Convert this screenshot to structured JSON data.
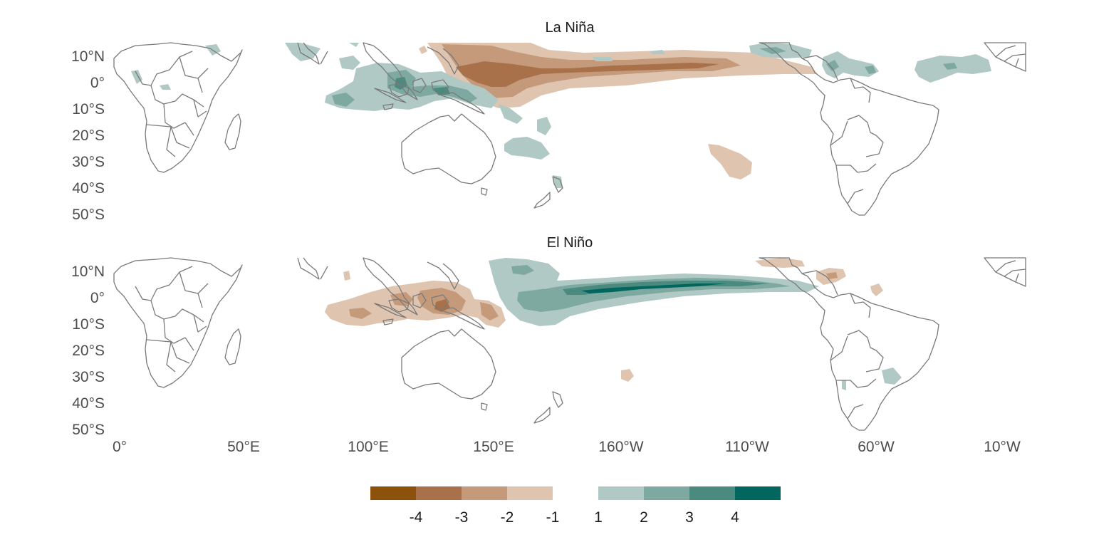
{
  "panels": [
    {
      "title": "La Niña",
      "anomalies": [
        {
          "level": -1,
          "region": "equatorial-central-pacific"
        },
        {
          "level": -2,
          "region": "equatorial-central-pacific-core"
        },
        {
          "level": -3,
          "region": "equatorial-central-pacific-center"
        },
        {
          "level": -1,
          "region": "south-pacific-patch"
        },
        {
          "level": 1,
          "region": "maritime-continent"
        },
        {
          "level": 2,
          "region": "maritime-continent-core"
        },
        {
          "level": 3,
          "region": "maritime-continent-center"
        },
        {
          "level": 1,
          "region": "northern-south-america"
        },
        {
          "level": 1,
          "region": "tropical-atlantic"
        }
      ]
    },
    {
      "title": "El Niño",
      "anomalies": [
        {
          "level": 1,
          "region": "equatorial-central-eastern-pacific"
        },
        {
          "level": 2,
          "region": "equatorial-central-pacific-core"
        },
        {
          "level": 3,
          "region": "equatorial-central-pacific-center"
        },
        {
          "level": -1,
          "region": "maritime-continent"
        },
        {
          "level": -2,
          "region": "maritime-continent-core"
        },
        {
          "level": -3,
          "region": "maritime-continent-center"
        },
        {
          "level": -1,
          "region": "northern-south-america"
        },
        {
          "level": 1,
          "region": "southeast-south-america"
        }
      ]
    }
  ],
  "lat_ticks": [
    "10°N",
    "0°",
    "10°S",
    "20°S",
    "30°S",
    "40°S",
    "50°S"
  ],
  "lon_ticks": [
    "0°",
    "50°E",
    "100°E",
    "150°E",
    "160°W",
    "110°W",
    "60°W",
    "10°W"
  ],
  "legend": {
    "bins": [
      {
        "label": "-4",
        "color": "#8c510a"
      },
      {
        "label": "-3",
        "color": "#a8714a"
      },
      {
        "label": "-2",
        "color": "#c49a7b"
      },
      {
        "label": "-1",
        "color": "#dfc4b0"
      },
      {
        "label": "1",
        "color": "#b0c9c4"
      },
      {
        "label": "2",
        "color": "#7ea9a1"
      },
      {
        "label": "3",
        "color": "#4a8a7f"
      },
      {
        "label": "4",
        "color": "#01665e"
      }
    ]
  },
  "colors": {
    "coastline": "#7a7a7a",
    "background": "#ffffff"
  }
}
